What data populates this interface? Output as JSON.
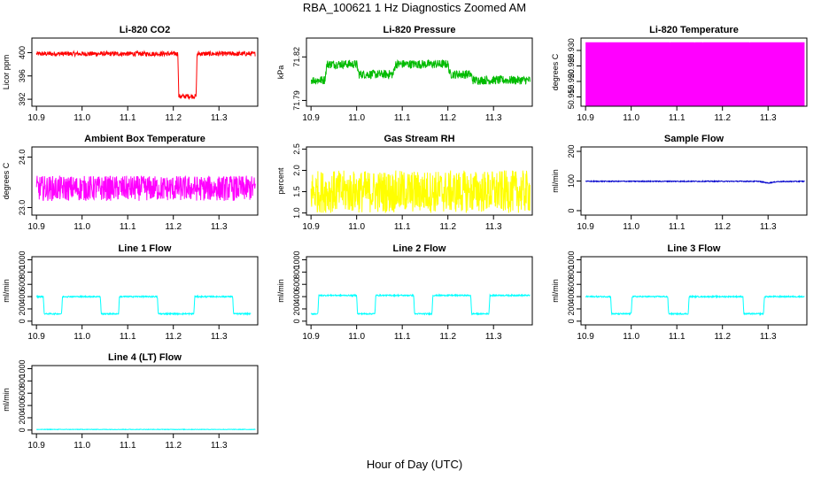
{
  "figure": {
    "title": "RBA_100621  1 Hz Diagnostics Zoomed AM",
    "xlabel": "Hour of Day (UTC)"
  },
  "chart_data": [
    {
      "type": "line",
      "title": "Li-820 CO2",
      "ylabel": "Licor ppm",
      "color": "#ff0000",
      "xlim": [
        10.89,
        11.385
      ],
      "ylim": [
        390.8,
        402.5
      ],
      "xticks": [
        "10.9",
        "11.0",
        "11.1",
        "11.2",
        "11.3"
      ],
      "yticks": [
        "392",
        "396",
        "400"
      ],
      "series": [
        {
          "name": "CO2",
          "x": [
            10.9,
            11.21,
            11.212,
            11.25,
            11.252,
            11.38
          ],
          "y": [
            399.8,
            399.8,
            392.5,
            392.5,
            399.8,
            399.8
          ],
          "noise": 0.8
        }
      ]
    },
    {
      "type": "line",
      "title": "Li-820 Pressure",
      "ylabel": "kPa",
      "color": "#00bb00",
      "xlim": [
        10.89,
        11.385
      ],
      "ylim": [
        71.786,
        71.833
      ],
      "xticks": [
        "10.9",
        "11.0",
        "11.1",
        "11.2",
        "11.3"
      ],
      "yticks": [
        "71.79",
        "71.82"
      ],
      "series": [
        {
          "name": "Pressure",
          "x": [
            10.9,
            10.93,
            10.935,
            11.0,
            11.005,
            11.08,
            11.085,
            11.2,
            11.205,
            11.25,
            11.255,
            11.38
          ],
          "y": [
            71.804,
            71.804,
            71.815,
            71.815,
            71.808,
            71.808,
            71.815,
            71.815,
            71.808,
            71.808,
            71.804,
            71.804
          ],
          "noise": 0.006
        }
      ]
    },
    {
      "type": "line",
      "title": "Li-820 Temperature",
      "ylabel": "degrees C",
      "color": "#ff00ff",
      "xlim": [
        10.89,
        11.385
      ],
      "ylim": [
        50.912,
        50.934
      ],
      "xticks": [
        "10.9",
        "11.0",
        "11.1",
        "11.2",
        "11.3"
      ],
      "yticks": [
        "50.915",
        "50.920",
        "50.925",
        "50.930"
      ],
      "series": [
        {
          "name": "Temperature",
          "x": [
            10.9,
            11.38
          ],
          "y": [
            50.9325,
            50.9325
          ],
          "drop_to": 50.912
        }
      ]
    },
    {
      "type": "line",
      "title": "Ambient Box Temperature",
      "ylabel": "degrees C",
      "color": "#ff00ff",
      "xlim": [
        10.89,
        11.385
      ],
      "ylim": [
        22.85,
        24.2
      ],
      "xticks": [
        "10.9",
        "11.0",
        "11.1",
        "11.2",
        "11.3"
      ],
      "yticks": [
        "23.0",
        "24.0"
      ],
      "series": [
        {
          "name": "Box Temp",
          "x": [
            10.9,
            11.38
          ],
          "y": [
            23.38,
            23.38
          ],
          "noise": 0.5
        }
      ]
    },
    {
      "type": "line",
      "title": "Gas Stream RH",
      "ylabel": "percent",
      "color": "#ffff00",
      "xlim": [
        10.89,
        11.385
      ],
      "ylim": [
        0.95,
        2.55
      ],
      "xticks": [
        "10.9",
        "11.0",
        "11.1",
        "11.2",
        "11.3"
      ],
      "yticks": [
        "1.0",
        "1.5",
        "2.0",
        "2.5"
      ],
      "series": [
        {
          "name": "RH",
          "x": [
            10.9,
            11.38
          ],
          "y": [
            1.5,
            1.5
          ],
          "noise": 1.0
        }
      ]
    },
    {
      "type": "line",
      "title": "Sample Flow",
      "ylabel": "ml/min",
      "color": "#0000cc",
      "xlim": [
        10.89,
        11.385
      ],
      "ylim": [
        -15,
        215
      ],
      "xticks": [
        "10.9",
        "11.0",
        "11.1",
        "11.2",
        "11.3"
      ],
      "yticks": [
        "0",
        "100",
        "200"
      ],
      "series": [
        {
          "name": "Sample Flow",
          "x": [
            10.9,
            11.28,
            11.3,
            11.32,
            11.38
          ],
          "y": [
            99,
            99,
            93,
            98,
            99
          ],
          "noise": 3
        }
      ]
    },
    {
      "type": "line",
      "title": "Line 1 Flow",
      "ylabel": "ml/min",
      "color": "#00ffff",
      "xlim": [
        10.89,
        11.385
      ],
      "ylim": [
        -60,
        1050
      ],
      "xticks": [
        "10.9",
        "11.0",
        "11.1",
        "11.2",
        "11.3"
      ],
      "yticks": [
        "0",
        "200",
        "400",
        "600",
        "800",
        "1000"
      ],
      "series": [
        {
          "name": "Line 1",
          "x": [
            10.9,
            10.915,
            10.917,
            10.955,
            10.957,
            11.04,
            11.042,
            11.08,
            11.082,
            11.165,
            11.167,
            11.245,
            11.247,
            11.33,
            11.332,
            11.37
          ],
          "y": [
            400,
            400,
            120,
            120,
            400,
            400,
            120,
            120,
            400,
            400,
            120,
            120,
            400,
            400,
            120,
            120
          ],
          "noise": 20
        }
      ]
    },
    {
      "type": "line",
      "title": "Line 2 Flow",
      "ylabel": "ml/min",
      "color": "#00ffff",
      "xlim": [
        10.89,
        11.385
      ],
      "ylim": [
        -60,
        1050
      ],
      "xticks": [
        "10.9",
        "11.0",
        "11.1",
        "11.2",
        "11.3"
      ],
      "yticks": [
        "0",
        "200",
        "400",
        "600",
        "800",
        "1000"
      ],
      "series": [
        {
          "name": "Line 2",
          "x": [
            10.9,
            10.915,
            10.917,
            11.0,
            11.002,
            11.04,
            11.042,
            11.125,
            11.127,
            11.165,
            11.167,
            11.25,
            11.252,
            11.29,
            11.292,
            11.38
          ],
          "y": [
            120,
            120,
            420,
            420,
            120,
            120,
            420,
            420,
            120,
            120,
            420,
            420,
            120,
            120,
            420,
            420
          ],
          "noise": 20
        }
      ]
    },
    {
      "type": "line",
      "title": "Line 3 Flow",
      "ylabel": "ml/min",
      "color": "#00ffff",
      "xlim": [
        10.89,
        11.385
      ],
      "ylim": [
        -60,
        1050
      ],
      "xticks": [
        "10.9",
        "11.0",
        "11.1",
        "11.2",
        "11.3"
      ],
      "yticks": [
        "0",
        "200",
        "400",
        "600",
        "800",
        "1000"
      ],
      "series": [
        {
          "name": "Line 3",
          "x": [
            10.9,
            10.955,
            10.957,
            11.0,
            11.002,
            11.08,
            11.082,
            11.125,
            11.127,
            11.245,
            11.247,
            11.29,
            11.292,
            11.38
          ],
          "y": [
            400,
            400,
            120,
            120,
            400,
            400,
            120,
            120,
            400,
            400,
            120,
            120,
            400,
            400
          ],
          "noise": 20
        }
      ]
    },
    {
      "type": "line",
      "title": "Line 4 (LT) Flow",
      "ylabel": "ml/min",
      "color": "#00ffff",
      "xlim": [
        10.89,
        11.385
      ],
      "ylim": [
        -60,
        1050
      ],
      "xticks": [
        "10.9",
        "11.0",
        "11.1",
        "11.2",
        "11.3"
      ],
      "yticks": [
        "0",
        "200",
        "400",
        "600",
        "800",
        "1000"
      ],
      "series": [
        {
          "name": "Line 4",
          "x": [
            10.9,
            11.38
          ],
          "y": [
            10,
            10
          ],
          "noise": 8
        }
      ]
    }
  ]
}
